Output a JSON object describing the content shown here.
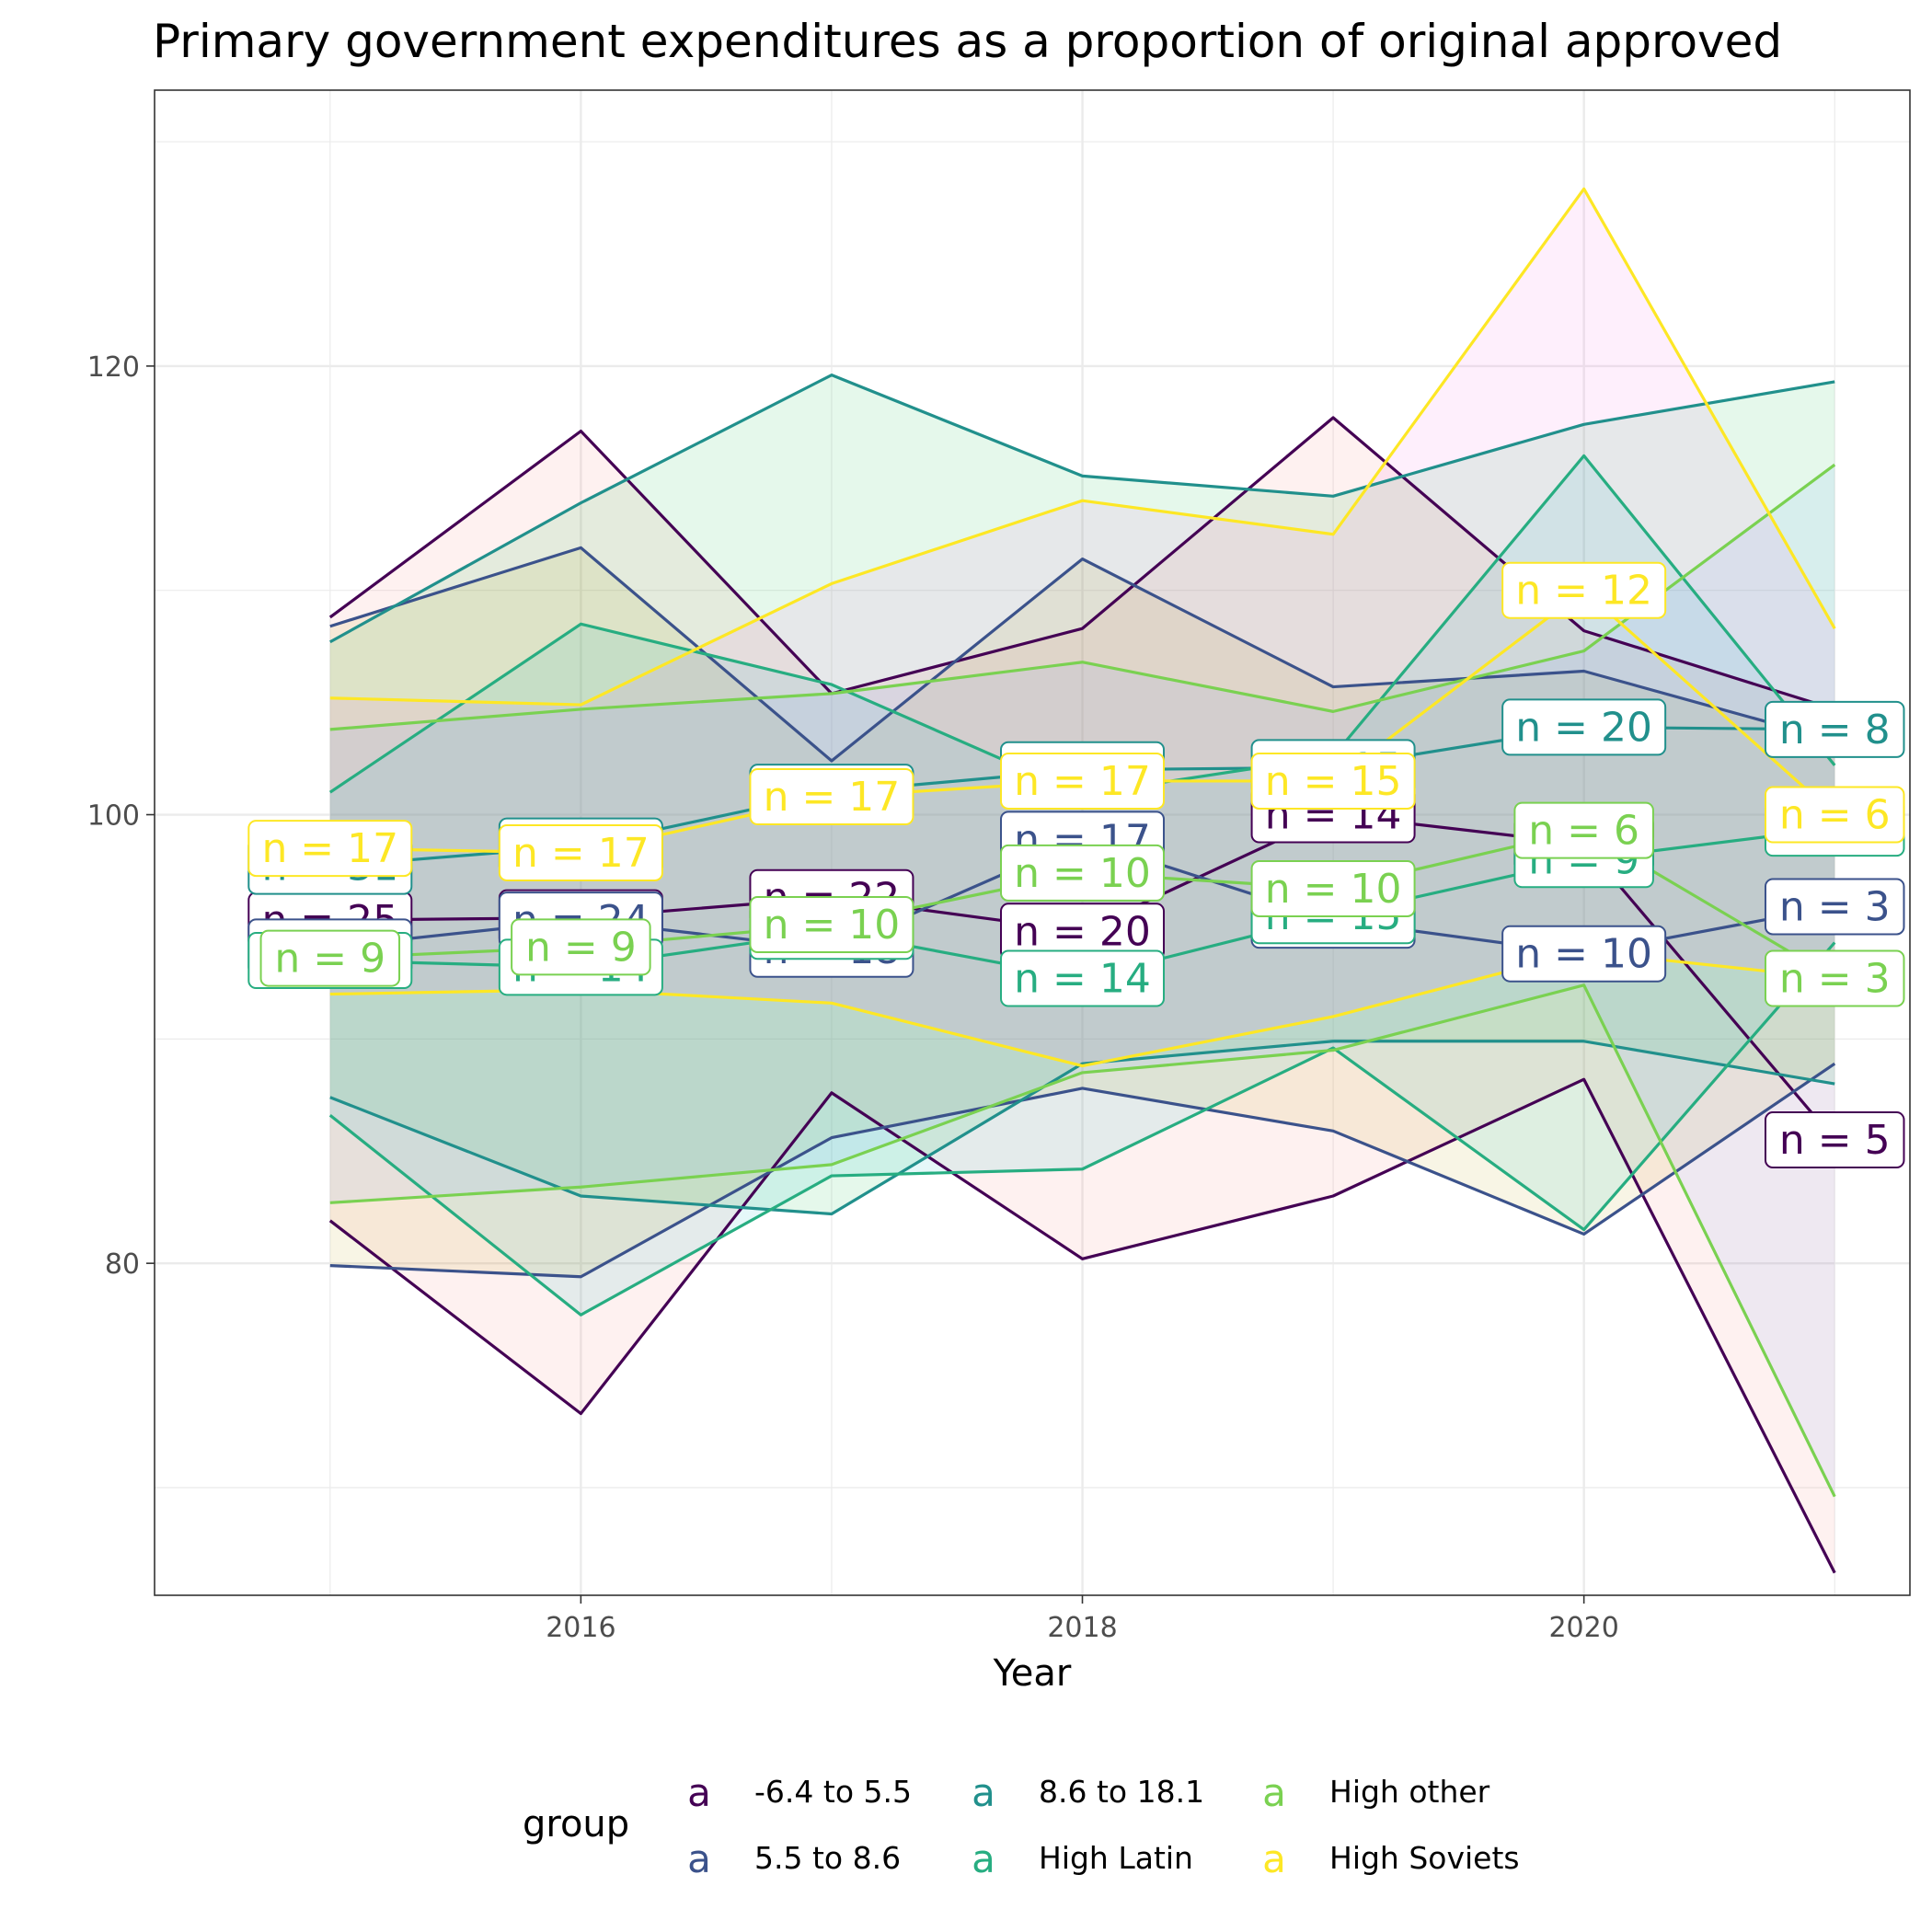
{
  "chart_data": {
    "type": "line",
    "title": "Primary government expenditures as a proportion of original approved",
    "xlabel": "Year",
    "ylabel": "",
    "x": [
      2015,
      2016,
      2017,
      2018,
      2019,
      2020,
      2021
    ],
    "xlim": [
      2014.3,
      2021.3
    ],
    "ylim": [
      65.2,
      132.3
    ],
    "x_ticks": [
      2016,
      2018,
      2020
    ],
    "y_ticks": [
      80,
      100,
      120
    ],
    "grid": true,
    "legend": {
      "title": "group",
      "position": "bottom",
      "key_glyph": "a"
    },
    "series": [
      {
        "name": "-6.4 to 5.5",
        "color": "#440154",
        "values": [
          95.3,
          95.4,
          96.3,
          94.8,
          100.0,
          98.7,
          85.5
        ],
        "upper": [
          108.8,
          117.1,
          105.4,
          108.3,
          117.7,
          108.2,
          104.7
        ],
        "lower": [
          81.9,
          73.3,
          87.6,
          80.2,
          83.0,
          88.2,
          66.2
        ],
        "fill": "#F8766D",
        "n_labels": [
          "n = 25",
          "n = 24",
          "n = 22",
          "n = 20",
          "n = 14",
          "n = 9",
          "n = 5"
        ]
      },
      {
        "name": "5.5 to 8.6",
        "color": "#3B528B",
        "values": [
          94.1,
          95.3,
          94.0,
          98.9,
          95.3,
          93.8,
          95.9
        ],
        "upper": [
          108.4,
          111.9,
          102.4,
          111.4,
          105.7,
          106.4,
          103.3
        ],
        "lower": [
          79.9,
          79.4,
          85.6,
          87.8,
          85.9,
          81.3,
          88.9
        ],
        "fill": "#B79F00",
        "n_labels": [
          "n = 25",
          "n = 24",
          "n = 18",
          "n = 17",
          "n = 15",
          "n = 10",
          "n = 3"
        ]
      },
      {
        "name": "8.6 to 18.1",
        "color": "#21908C",
        "values": [
          97.7,
          98.6,
          101.0,
          102.0,
          102.1,
          103.9,
          103.8
        ],
        "upper": [
          107.7,
          113.9,
          119.6,
          115.1,
          114.2,
          117.4,
          119.3
        ],
        "lower": [
          87.4,
          83.0,
          82.2,
          88.9,
          89.9,
          89.9,
          88.0
        ],
        "fill": "#00BA38",
        "n_labels": [
          "n = 31",
          "n = 30",
          "n = 17",
          "n = 17",
          "n = 15",
          "n = 20",
          "n = 8"
        ]
      },
      {
        "name": "High Latin",
        "color": "#27AD81",
        "values": [
          93.5,
          93.2,
          94.8,
          92.7,
          95.5,
          98.0,
          99.4
        ],
        "upper": [
          101.0,
          108.5,
          105.8,
          100.9,
          102.6,
          116.0,
          102.2
        ],
        "lower": [
          86.6,
          77.7,
          83.9,
          84.2,
          89.6,
          81.5,
          94.3
        ],
        "fill": "#00BFC4",
        "n_labels": [
          "n = 14",
          "n = 14",
          "n = 10",
          "n = 14",
          "n = 15",
          "n = 9",
          "n = 8"
        ]
      },
      {
        "name": "High other",
        "color": "#7AD151",
        "values": [
          93.6,
          94.1,
          95.1,
          97.4,
          96.7,
          99.3,
          92.7
        ],
        "upper": [
          103.8,
          104.7,
          105.4,
          106.8,
          104.6,
          107.3,
          115.6
        ],
        "lower": [
          82.7,
          83.4,
          84.4,
          88.5,
          89.5,
          92.4,
          69.6
        ],
        "fill": "#619CFF",
        "n_labels": [
          "n = 9",
          "n = 9",
          "n = 10",
          "n = 10",
          "n = 10",
          "n = 6",
          "n = 3"
        ]
      },
      {
        "name": "High Soviets",
        "color": "#FDE725",
        "values": [
          98.5,
          98.3,
          100.8,
          101.5,
          101.5,
          110.0,
          100.0
        ],
        "upper": [
          105.2,
          104.9,
          110.3,
          114.0,
          112.5,
          127.9,
          108.3
        ],
        "lower": [
          92.0,
          92.2,
          91.6,
          88.8,
          91.0,
          93.9,
          92.7
        ],
        "fill": "#F564E3",
        "n_labels": [
          "n = 17",
          "n = 17",
          "n = 17",
          "n = 17",
          "n = 15",
          "n = 12",
          "n = 6"
        ]
      }
    ]
  }
}
